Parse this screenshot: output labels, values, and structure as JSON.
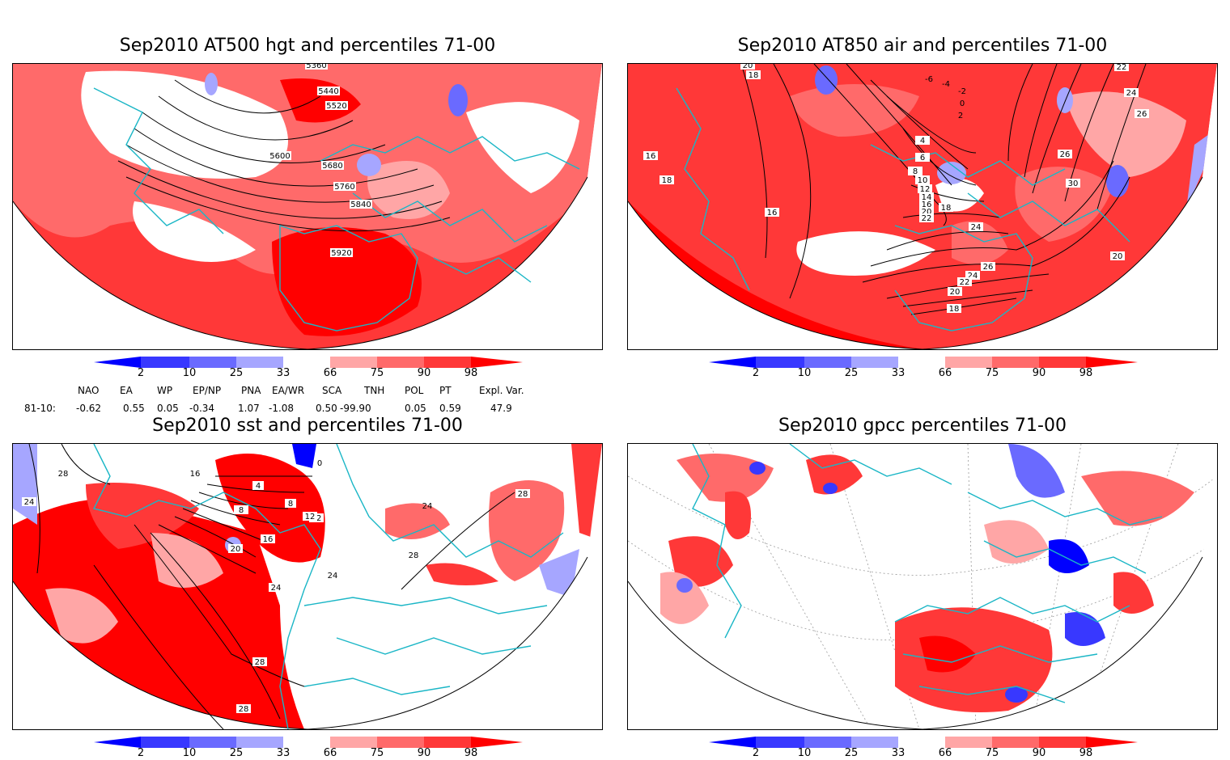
{
  "panels": {
    "hgt": {
      "title": "Sep2010 AT500 hgt and percentiles 71-00",
      "contour_labels": [
        "5360",
        "5440",
        "5520",
        "5600",
        "5680",
        "5760",
        "5840",
        "5920"
      ]
    },
    "air": {
      "title": "Sep2010 AT850 air and percentiles 71-00",
      "contour_labels": [
        "20",
        "18",
        "-6",
        "-4",
        "-2",
        "0",
        "2",
        "4",
        "6",
        "8",
        "10",
        "12",
        "14",
        "16",
        "18",
        "20",
        "22",
        "24",
        "26",
        "30",
        "16",
        "18",
        "16",
        "26",
        "24",
        "22",
        "20",
        "18",
        "22",
        "24",
        "26",
        "20"
      ]
    },
    "sst": {
      "title": "Sep2010 sst and percentiles 71-00",
      "contour_labels": [
        "28",
        "24",
        "16",
        "12",
        "8",
        "4",
        "0",
        "8",
        "12",
        "16",
        "20",
        "24",
        "28",
        "28",
        "24",
        "28",
        "28",
        "24"
      ]
    },
    "gpcc": {
      "title": "Sep2010 gpcc percentiles 71-00"
    }
  },
  "colorbar": {
    "labels": [
      "2",
      "10",
      "25",
      "33",
      "66",
      "75",
      "90",
      "98"
    ],
    "colors": {
      "b98": "#0000ff",
      "b90": "#3838ff",
      "b75": "#6a6aff",
      "b66": "#a6a6ff",
      "neutral": "#ffffff",
      "r66": "#ffa6a6",
      "r75": "#ff6a6a",
      "r90": "#ff3838",
      "r98": "#ff0000"
    }
  },
  "indices": {
    "headers": [
      "NAO",
      "EA",
      "WP",
      "EP/NP",
      "PNA",
      "EA/WR",
      "SCA",
      "TNH",
      "POL",
      "PT",
      "Expl. Var."
    ],
    "row_label": "81-10:",
    "values": [
      "-0.62",
      "0.55",
      "0.05",
      "-0.34",
      "1.07",
      "-1.08",
      "0.50",
      "-99.90",
      "0.05",
      "0.59",
      "47.9"
    ]
  },
  "map_style": {
    "coast_color": "#1ab6c6",
    "contour_color": "#000000",
    "grid_color": "#9a9a9a"
  }
}
